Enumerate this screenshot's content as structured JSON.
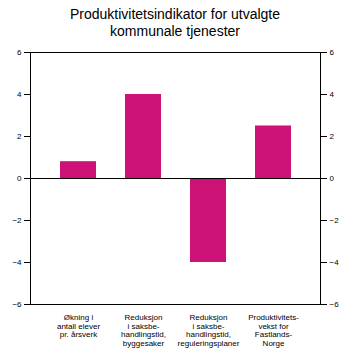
{
  "chart_data": {
    "type": "bar",
    "title": "Produktivitetsindikator for utvalgte\nkommunale tjenester",
    "categories": [
      "Økning i\nantall elever\npr. årsverk",
      "Reduksjon\ni saksbe-\nhandlingstid,\nbyggesaker",
      "Reduksjon\ni saksbe-\nhandlingstid,\nreguleringsplaner",
      "Produktivitets-\nvekst for\nFastlands-\nNorge"
    ],
    "values": [
      0.8,
      4.0,
      -4.0,
      2.5
    ],
    "color": "#CC1177",
    "ylim": [
      -6,
      6
    ],
    "yticks": [
      -6,
      -4,
      -2,
      0,
      2,
      4,
      6
    ],
    "grid": false
  }
}
